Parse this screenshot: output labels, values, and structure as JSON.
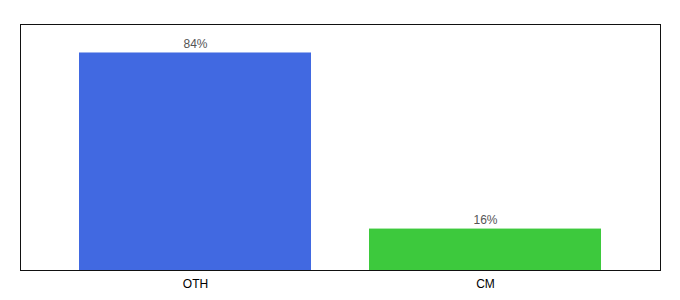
{
  "chart_data": {
    "type": "bar",
    "categories": [
      "OTH",
      "CM"
    ],
    "values": [
      84,
      16
    ],
    "value_labels": [
      "84%",
      "16%"
    ],
    "colors": [
      "#4169e1",
      "#3dc93d"
    ],
    "ylim": [
      0,
      95
    ],
    "data_labels": true,
    "tick_labels": "x"
  }
}
